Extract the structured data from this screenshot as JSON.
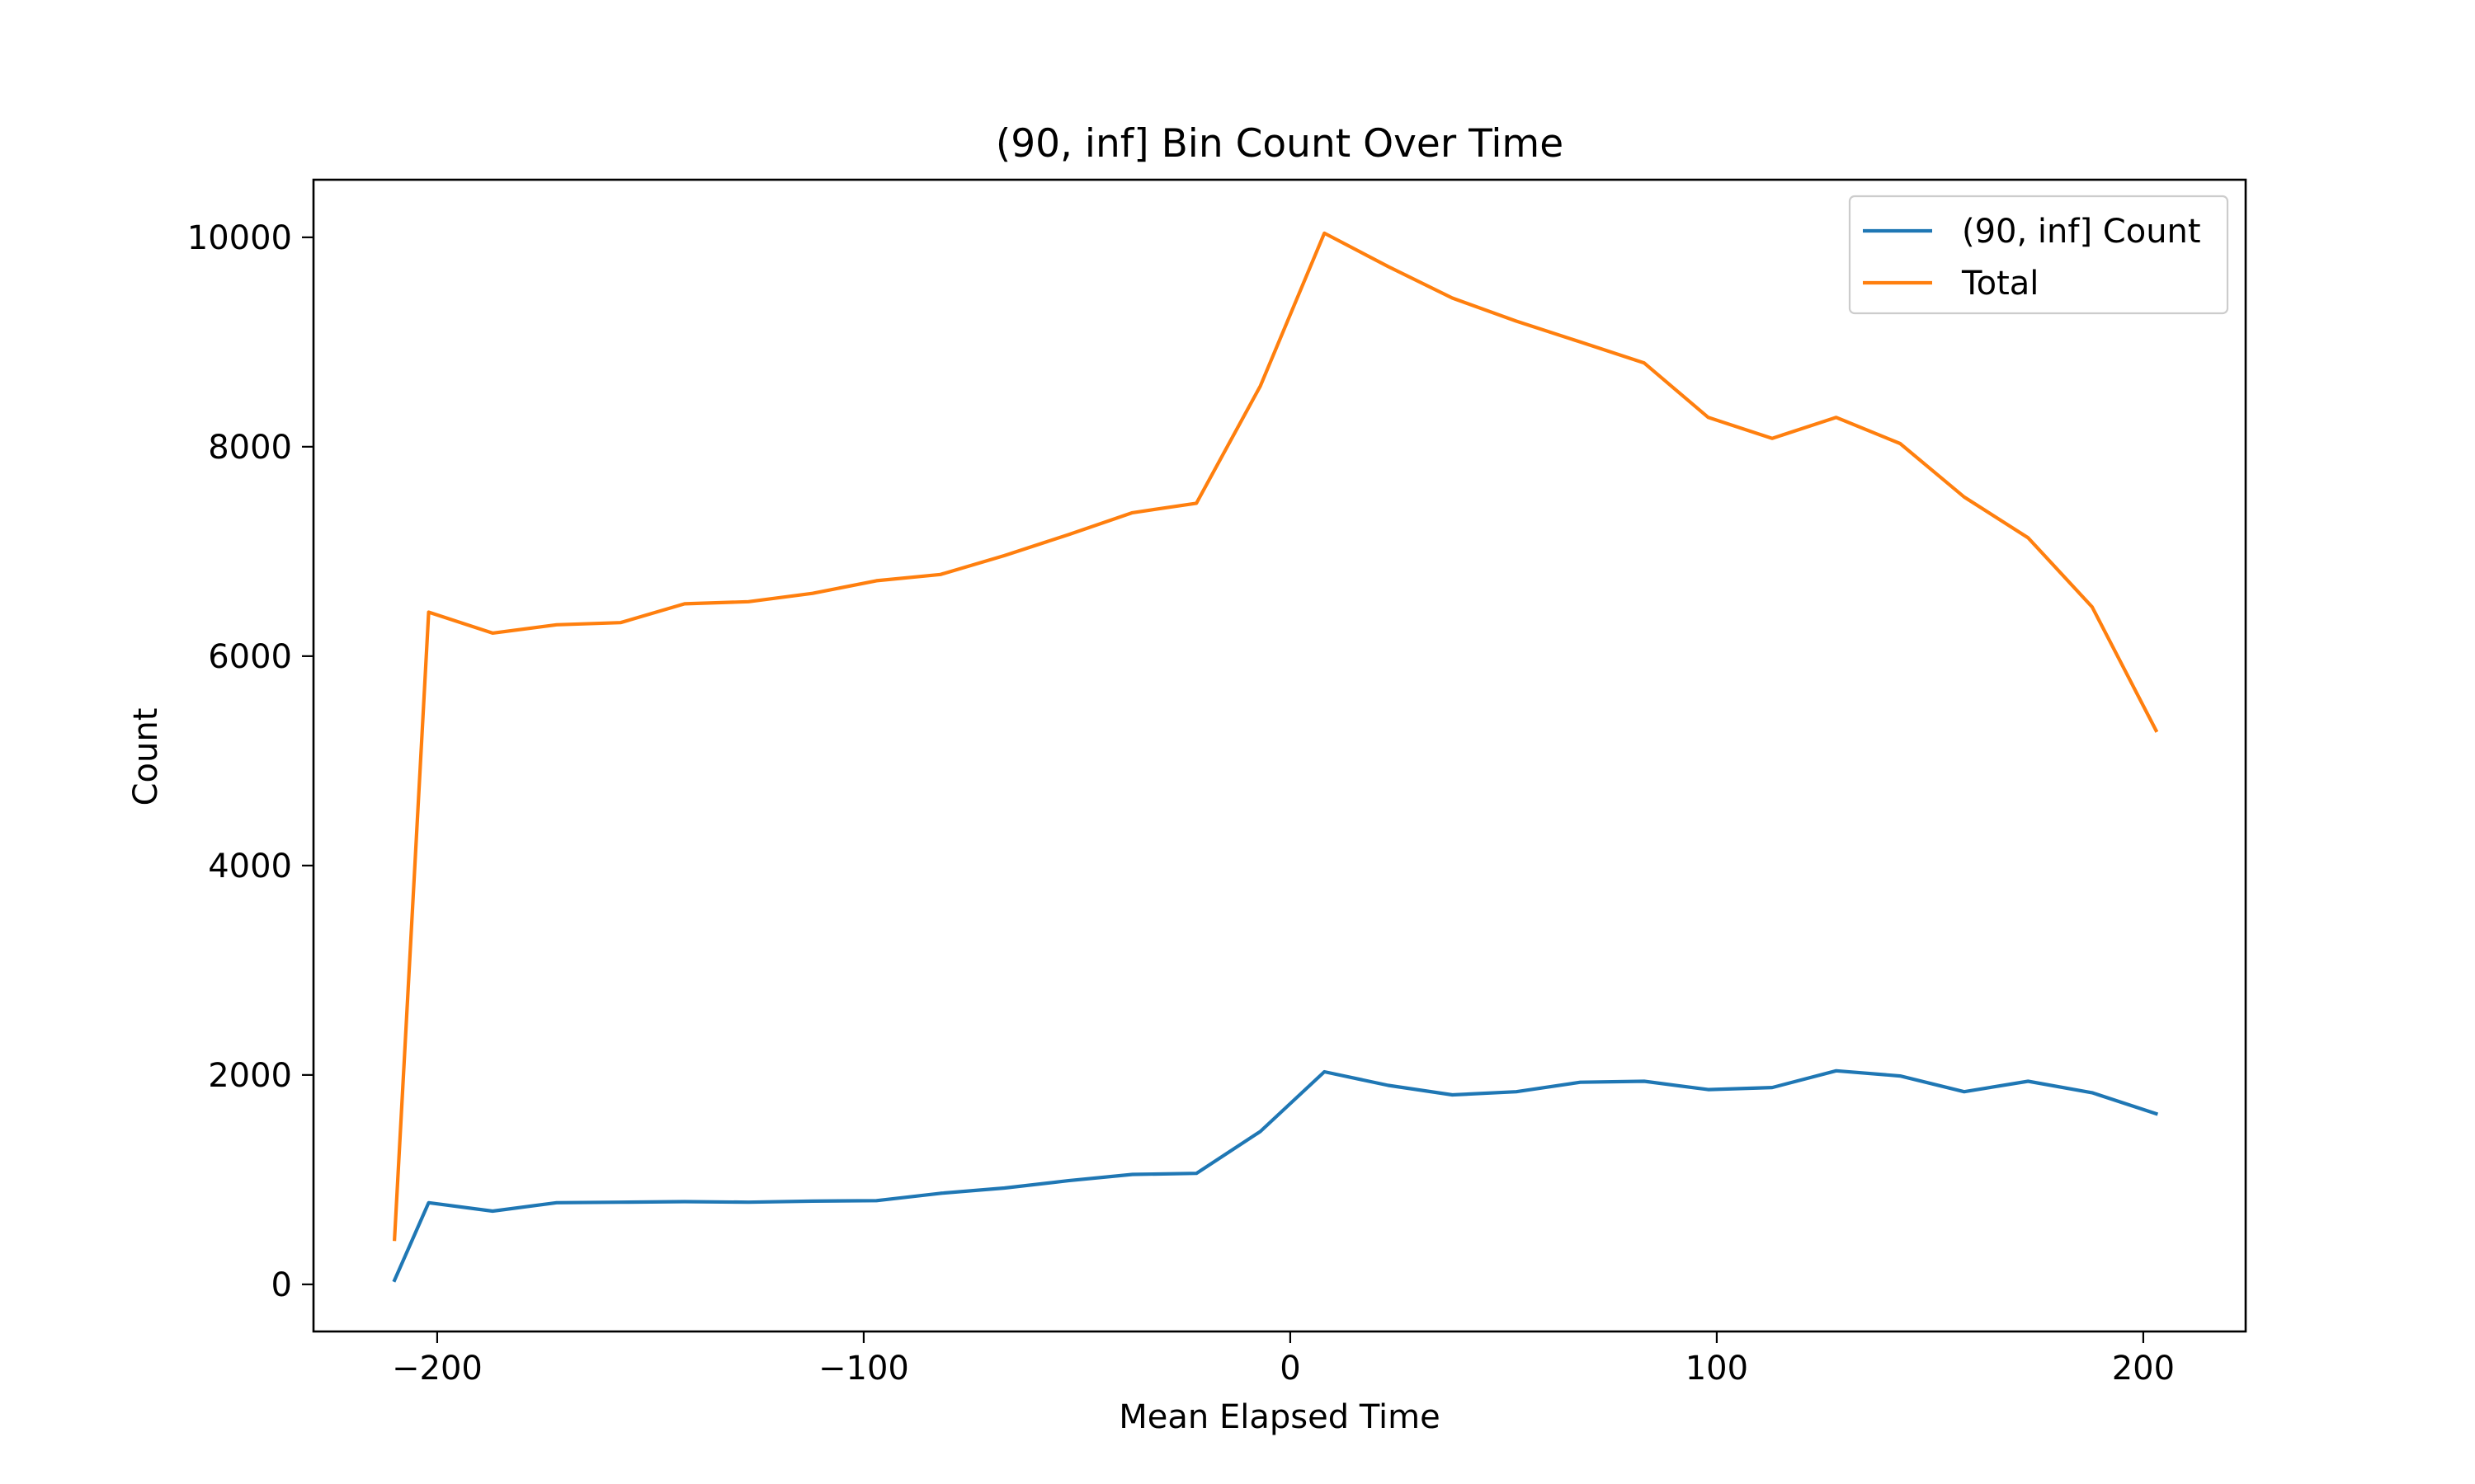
{
  "chart_data": {
    "type": "line",
    "title": "(90, inf] Bin Count Over Time",
    "xlabel": "Mean Elapsed Time",
    "ylabel": "Count",
    "xlim": [
      -229,
      224
    ],
    "ylim": [
      -450,
      10550
    ],
    "xticks": [
      -200,
      -100,
      0,
      100,
      200
    ],
    "xtick_labels": [
      "−200",
      "−100",
      "0",
      "100",
      "200"
    ],
    "yticks": [
      0,
      2000,
      4000,
      6000,
      8000,
      10000
    ],
    "ytick_labels": [
      "0",
      "2000",
      "4000",
      "6000",
      "8000",
      "10000"
    ],
    "grid": false,
    "legend_position": "upper right",
    "x": [
      -210,
      -202,
      -187,
      -172,
      -157,
      -142,
      -127,
      -112,
      -97,
      -82,
      -67,
      -52,
      -37,
      -22,
      -7,
      8,
      23,
      38,
      53,
      68,
      83,
      98,
      113,
      128,
      143,
      158,
      173,
      188,
      203
    ],
    "series": [
      {
        "name": "(90, inf] Count",
        "color": "#1f77b4",
        "values": [
          40,
          780,
          700,
          780,
          785,
          790,
          785,
          795,
          800,
          870,
          920,
          990,
          1050,
          1060,
          1460,
          2030,
          1900,
          1810,
          1840,
          1930,
          1940,
          1860,
          1880,
          2040,
          1990,
          1840,
          1940,
          1830,
          1630
        ]
      },
      {
        "name": "Total",
        "color": "#ff7f0e",
        "values": [
          430,
          6420,
          6220,
          6300,
          6320,
          6500,
          6520,
          6600,
          6720,
          6780,
          6960,
          7160,
          7370,
          7460,
          8580,
          10040,
          9720,
          9420,
          9200,
          9000,
          8800,
          8280,
          8080,
          8280,
          8030,
          7520,
          7130,
          6470,
          5290
        ]
      }
    ]
  }
}
